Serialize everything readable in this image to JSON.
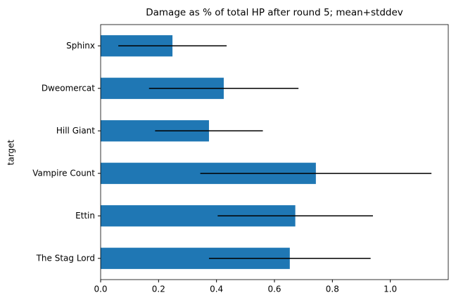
{
  "chart_data": {
    "type": "barh_error",
    "title": "Damage as % of total HP after round 5; mean+stddev",
    "ylabel": "target",
    "categories": [
      "The Stag Lord",
      "Ettin",
      "Vampire Count",
      "Hill Giant",
      "Dweomercat",
      "Sphinx"
    ],
    "values": [
      0.653,
      0.672,
      0.743,
      0.374,
      0.425,
      0.248
    ],
    "errors": [
      0.279,
      0.268,
      0.399,
      0.186,
      0.258,
      0.187
    ],
    "color": "#1f77b4",
    "error_color": "#000000",
    "xlim": [
      0,
      1.2
    ],
    "xticks": [
      {
        "value": 0,
        "label": "0.0"
      },
      0.2,
      0.4,
      0.6,
      0.8,
      {
        "value": 1,
        "label": "1.0"
      }
    ]
  }
}
